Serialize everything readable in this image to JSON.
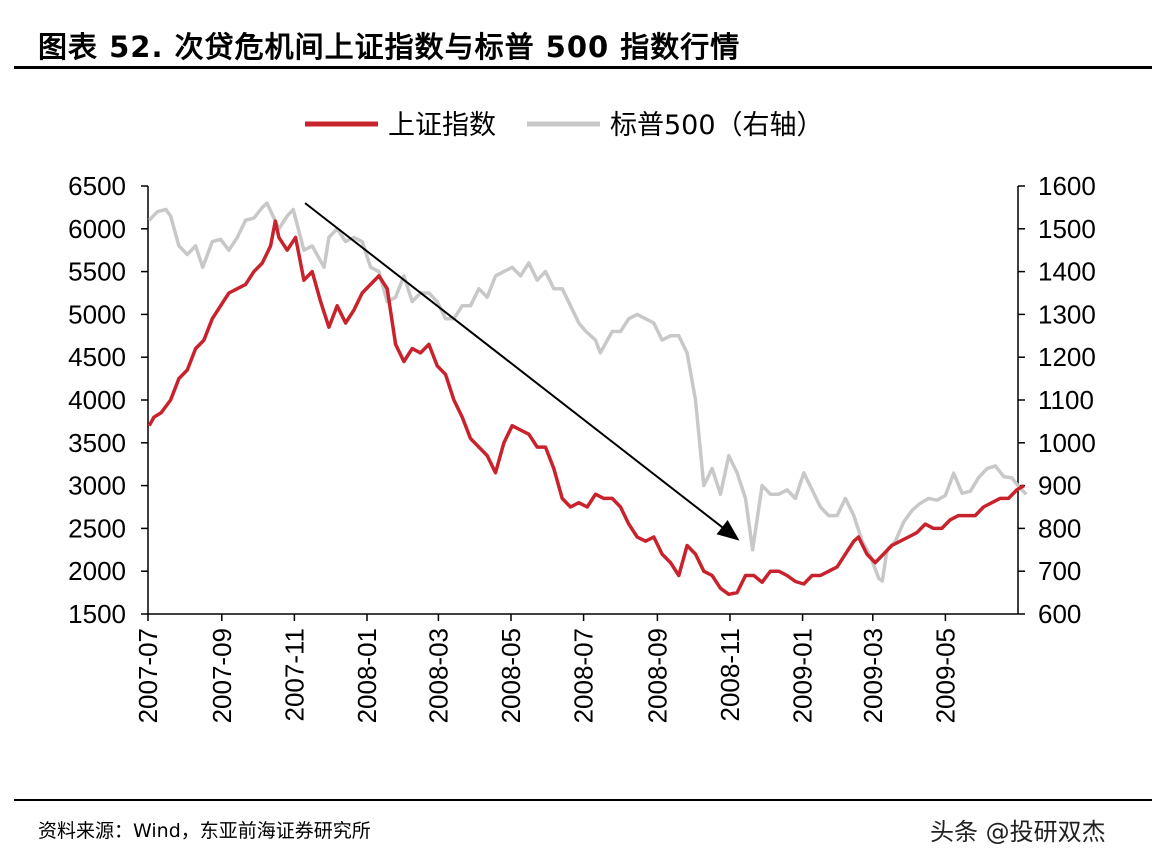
{
  "header": {
    "title": "图表 52. 次贷危机间上证指数与标普 500 指数行情"
  },
  "footer": {
    "source": "资料来源：Wind，东亚前海证券研究所",
    "watermark": "头条 @投研双杰"
  },
  "colors": {
    "shanghai": "#c8232c",
    "sp500": "#c8c8c8",
    "axis": "#000000",
    "arrow": "#000000"
  },
  "chart_data": {
    "type": "line",
    "title": "",
    "xlabel": "",
    "ylabel": "",
    "legend": "top",
    "grid": false,
    "x_tick_labels": [
      "2007-07",
      "2007-09",
      "2007-11",
      "2008-01",
      "2008-03",
      "2008-05",
      "2008-07",
      "2008-09",
      "2008-11",
      "2009-01",
      "2009-03",
      "2009-05"
    ],
    "x_range": [
      "2007-07",
      "2009-07"
    ],
    "ylim_left": [
      1500,
      6500
    ],
    "y_ticks_left": [
      1500,
      2000,
      2500,
      3000,
      3500,
      4000,
      4500,
      5000,
      5500,
      6000,
      6500
    ],
    "ylim_right": [
      600,
      1600
    ],
    "y_ticks_right": [
      600,
      700,
      800,
      900,
      1000,
      1100,
      1200,
      1300,
      1400,
      1500,
      1600
    ],
    "series": [
      {
        "name": "上证指数",
        "axis": "left",
        "points": [
          [
            "2007-07-02",
            3700
          ],
          [
            "2007-07-06",
            3800
          ],
          [
            "2007-07-12",
            3850
          ],
          [
            "2007-07-20",
            4000
          ],
          [
            "2007-07-27",
            4250
          ],
          [
            "2007-08-03",
            4350
          ],
          [
            "2007-08-10",
            4600
          ],
          [
            "2007-08-17",
            4700
          ],
          [
            "2007-08-24",
            4950
          ],
          [
            "2007-08-31",
            5100
          ],
          [
            "2007-09-07",
            5250
          ],
          [
            "2007-09-14",
            5300
          ],
          [
            "2007-09-21",
            5350
          ],
          [
            "2007-09-28",
            5500
          ],
          [
            "2007-10-05",
            5600
          ],
          [
            "2007-10-12",
            5800
          ],
          [
            "2007-10-16",
            6090
          ],
          [
            "2007-10-19",
            5900
          ],
          [
            "2007-10-26",
            5750
          ],
          [
            "2007-11-02",
            5900
          ],
          [
            "2007-11-09",
            5400
          ],
          [
            "2007-11-16",
            5500
          ],
          [
            "2007-11-23",
            5150
          ],
          [
            "2007-11-30",
            4850
          ],
          [
            "2007-12-07",
            5100
          ],
          [
            "2007-12-14",
            4900
          ],
          [
            "2007-12-21",
            5050
          ],
          [
            "2007-12-28",
            5250
          ],
          [
            "2008-01-04",
            5350
          ],
          [
            "2008-01-11",
            5450
          ],
          [
            "2008-01-18",
            5300
          ],
          [
            "2008-01-25",
            4650
          ],
          [
            "2008-02-01",
            4450
          ],
          [
            "2008-02-08",
            4600
          ],
          [
            "2008-02-15",
            4550
          ],
          [
            "2008-02-22",
            4650
          ],
          [
            "2008-02-29",
            4400
          ],
          [
            "2008-03-07",
            4300
          ],
          [
            "2008-03-14",
            4000
          ],
          [
            "2008-03-21",
            3800
          ],
          [
            "2008-03-28",
            3550
          ],
          [
            "2008-04-04",
            3450
          ],
          [
            "2008-04-11",
            3350
          ],
          [
            "2008-04-18",
            3150
          ],
          [
            "2008-04-25",
            3500
          ],
          [
            "2008-05-02",
            3700
          ],
          [
            "2008-05-09",
            3650
          ],
          [
            "2008-05-16",
            3600
          ],
          [
            "2008-05-23",
            3450
          ],
          [
            "2008-05-30",
            3450
          ],
          [
            "2008-06-06",
            3200
          ],
          [
            "2008-06-13",
            2850
          ],
          [
            "2008-06-20",
            2750
          ],
          [
            "2008-06-27",
            2800
          ],
          [
            "2008-07-04",
            2750
          ],
          [
            "2008-07-11",
            2900
          ],
          [
            "2008-07-18",
            2850
          ],
          [
            "2008-07-25",
            2850
          ],
          [
            "2008-08-01",
            2750
          ],
          [
            "2008-08-08",
            2550
          ],
          [
            "2008-08-15",
            2400
          ],
          [
            "2008-08-22",
            2350
          ],
          [
            "2008-08-29",
            2400
          ],
          [
            "2008-09-05",
            2200
          ],
          [
            "2008-09-12",
            2100
          ],
          [
            "2008-09-19",
            1950
          ],
          [
            "2008-09-26",
            2300
          ],
          [
            "2008-10-03",
            2200
          ],
          [
            "2008-10-10",
            2000
          ],
          [
            "2008-10-17",
            1950
          ],
          [
            "2008-10-24",
            1800
          ],
          [
            "2008-10-31",
            1730
          ],
          [
            "2008-11-07",
            1750
          ],
          [
            "2008-11-14",
            1950
          ],
          [
            "2008-11-21",
            1950
          ],
          [
            "2008-11-28",
            1870
          ],
          [
            "2008-12-05",
            2000
          ],
          [
            "2008-12-12",
            2000
          ],
          [
            "2008-12-19",
            1950
          ],
          [
            "2008-12-26",
            1880
          ],
          [
            "2009-01-02",
            1850
          ],
          [
            "2009-01-09",
            1950
          ],
          [
            "2009-01-16",
            1950
          ],
          [
            "2009-01-23",
            2000
          ],
          [
            "2009-01-30",
            2050
          ],
          [
            "2009-02-06",
            2200
          ],
          [
            "2009-02-13",
            2350
          ],
          [
            "2009-02-17",
            2400
          ],
          [
            "2009-02-24",
            2200
          ],
          [
            "2009-03-03",
            2100
          ],
          [
            "2009-03-10",
            2200
          ],
          [
            "2009-03-17",
            2300
          ],
          [
            "2009-03-24",
            2350
          ],
          [
            "2009-03-31",
            2400
          ],
          [
            "2009-04-07",
            2450
          ],
          [
            "2009-04-14",
            2550
          ],
          [
            "2009-04-21",
            2500
          ],
          [
            "2009-04-28",
            2500
          ],
          [
            "2009-05-05",
            2600
          ],
          [
            "2009-05-12",
            2650
          ],
          [
            "2009-05-19",
            2650
          ],
          [
            "2009-05-26",
            2650
          ],
          [
            "2009-06-02",
            2750
          ],
          [
            "2009-06-09",
            2800
          ],
          [
            "2009-06-16",
            2850
          ],
          [
            "2009-06-23",
            2850
          ],
          [
            "2009-06-30",
            2950
          ],
          [
            "2009-07-06",
            3000
          ]
        ]
      },
      {
        "name": "标普500（右轴）",
        "axis": "right",
        "points": [
          [
            "2007-07-02",
            1520
          ],
          [
            "2007-07-09",
            1540
          ],
          [
            "2007-07-16",
            1545
          ],
          [
            "2007-07-20",
            1530
          ],
          [
            "2007-07-27",
            1460
          ],
          [
            "2007-08-03",
            1440
          ],
          [
            "2007-08-10",
            1460
          ],
          [
            "2007-08-16",
            1410
          ],
          [
            "2007-08-24",
            1470
          ],
          [
            "2007-08-31",
            1475
          ],
          [
            "2007-09-07",
            1450
          ],
          [
            "2007-09-14",
            1480
          ],
          [
            "2007-09-21",
            1520
          ],
          [
            "2007-09-28",
            1525
          ],
          [
            "2007-10-05",
            1550
          ],
          [
            "2007-10-09",
            1560
          ],
          [
            "2007-10-19",
            1500
          ],
          [
            "2007-10-26",
            1530
          ],
          [
            "2007-10-31",
            1545
          ],
          [
            "2007-11-09",
            1450
          ],
          [
            "2007-11-16",
            1460
          ],
          [
            "2007-11-26",
            1410
          ],
          [
            "2007-11-30",
            1480
          ],
          [
            "2007-12-07",
            1500
          ],
          [
            "2007-12-14",
            1470
          ],
          [
            "2007-12-21",
            1480
          ],
          [
            "2007-12-28",
            1470
          ],
          [
            "2008-01-04",
            1410
          ],
          [
            "2008-01-11",
            1400
          ],
          [
            "2008-01-18",
            1330
          ],
          [
            "2008-01-25",
            1340
          ],
          [
            "2008-02-01",
            1390
          ],
          [
            "2008-02-08",
            1330
          ],
          [
            "2008-02-15",
            1350
          ],
          [
            "2008-02-22",
            1350
          ],
          [
            "2008-02-29",
            1330
          ],
          [
            "2008-03-07",
            1290
          ],
          [
            "2008-03-14",
            1290
          ],
          [
            "2008-03-21",
            1320
          ],
          [
            "2008-03-28",
            1320
          ],
          [
            "2008-04-04",
            1360
          ],
          [
            "2008-04-11",
            1340
          ],
          [
            "2008-04-18",
            1390
          ],
          [
            "2008-04-25",
            1400
          ],
          [
            "2008-05-02",
            1410
          ],
          [
            "2008-05-09",
            1390
          ],
          [
            "2008-05-16",
            1420
          ],
          [
            "2008-05-23",
            1380
          ],
          [
            "2008-05-30",
            1400
          ],
          [
            "2008-06-06",
            1360
          ],
          [
            "2008-06-13",
            1360
          ],
          [
            "2008-06-20",
            1320
          ],
          [
            "2008-06-27",
            1280
          ],
          [
            "2008-07-03",
            1260
          ],
          [
            "2008-07-11",
            1240
          ],
          [
            "2008-07-15",
            1210
          ],
          [
            "2008-07-25",
            1260
          ],
          [
            "2008-08-01",
            1260
          ],
          [
            "2008-08-08",
            1290
          ],
          [
            "2008-08-15",
            1300
          ],
          [
            "2008-08-22",
            1290
          ],
          [
            "2008-08-29",
            1280
          ],
          [
            "2008-09-05",
            1240
          ],
          [
            "2008-09-12",
            1250
          ],
          [
            "2008-09-19",
            1250
          ],
          [
            "2008-09-26",
            1210
          ],
          [
            "2008-10-03",
            1100
          ],
          [
            "2008-10-10",
            900
          ],
          [
            "2008-10-17",
            940
          ],
          [
            "2008-10-24",
            880
          ],
          [
            "2008-10-31",
            970
          ],
          [
            "2008-11-07",
            930
          ],
          [
            "2008-11-14",
            870
          ],
          [
            "2008-11-20",
            750
          ],
          [
            "2008-11-28",
            900
          ],
          [
            "2008-12-05",
            880
          ],
          [
            "2008-12-12",
            880
          ],
          [
            "2008-12-19",
            890
          ],
          [
            "2008-12-26",
            870
          ],
          [
            "2009-01-02",
            930
          ],
          [
            "2009-01-09",
            890
          ],
          [
            "2009-01-16",
            850
          ],
          [
            "2009-01-23",
            830
          ],
          [
            "2009-01-30",
            830
          ],
          [
            "2009-02-06",
            870
          ],
          [
            "2009-02-13",
            830
          ],
          [
            "2009-02-20",
            770
          ],
          [
            "2009-02-27",
            735
          ],
          [
            "2009-03-06",
            683
          ],
          [
            "2009-03-09",
            677
          ],
          [
            "2009-03-13",
            750
          ],
          [
            "2009-03-20",
            770
          ],
          [
            "2009-03-27",
            815
          ],
          [
            "2009-04-03",
            842
          ],
          [
            "2009-04-09",
            857
          ],
          [
            "2009-04-17",
            870
          ],
          [
            "2009-04-24",
            866
          ],
          [
            "2009-05-01",
            877
          ],
          [
            "2009-05-08",
            929
          ],
          [
            "2009-05-15",
            882
          ],
          [
            "2009-05-22",
            887
          ],
          [
            "2009-05-29",
            919
          ],
          [
            "2009-06-05",
            940
          ],
          [
            "2009-06-12",
            946
          ],
          [
            "2009-06-19",
            921
          ],
          [
            "2009-06-26",
            918
          ],
          [
            "2009-07-02",
            896
          ],
          [
            "2009-07-08",
            880
          ]
        ]
      }
    ],
    "annotations": [
      {
        "type": "arrow",
        "from": [
          "2007-11-10",
          6300
        ],
        "to": [
          "2008-11-05",
          2400
        ]
      }
    ]
  }
}
